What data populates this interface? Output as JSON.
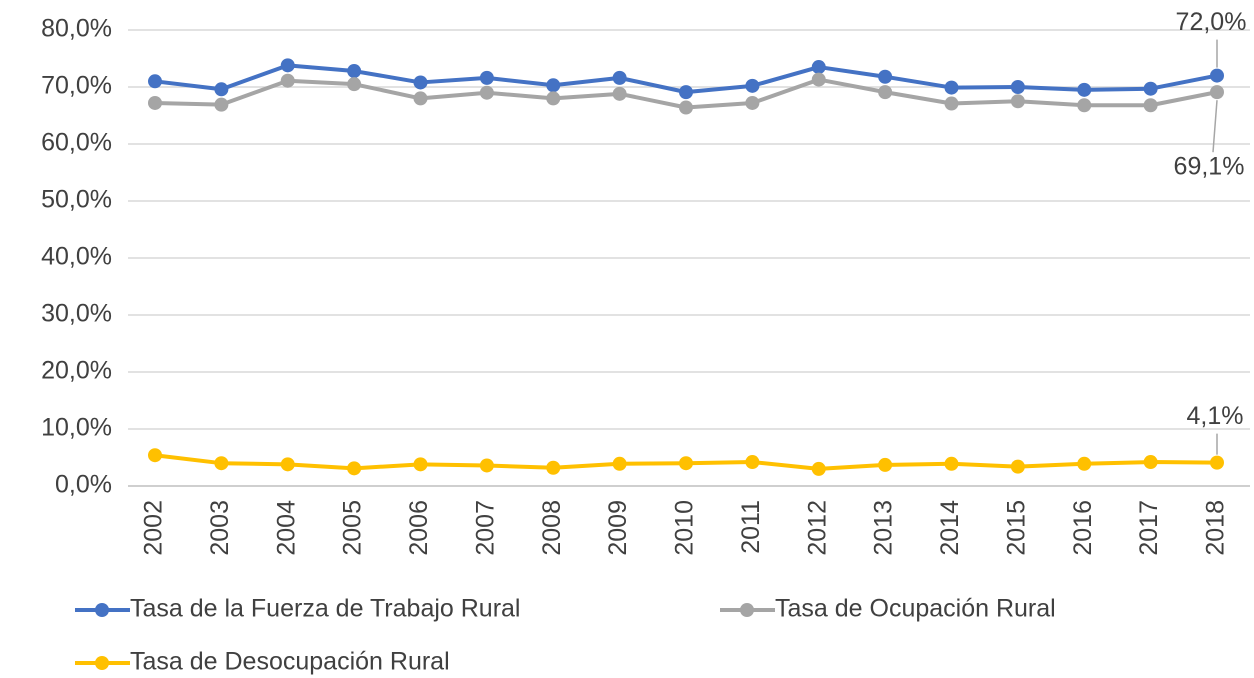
{
  "chart_data": {
    "type": "line",
    "categories": [
      "2002",
      "2003",
      "2004",
      "2005",
      "2006",
      "2007",
      "2008",
      "2009",
      "2010",
      "2011",
      "2012",
      "2013",
      "2014",
      "2015",
      "2016",
      "2017",
      "2018"
    ],
    "series": [
      {
        "name": "Tasa de la Fuerza de Trabajo Rural",
        "color": "#4472c4",
        "values": [
          71.0,
          69.6,
          73.8,
          72.8,
          70.8,
          71.6,
          70.3,
          71.6,
          69.1,
          70.2,
          73.5,
          71.8,
          69.9,
          70.0,
          69.5,
          69.7,
          72.0
        ],
        "value_labels": [
          null,
          null,
          null,
          null,
          null,
          null,
          null,
          null,
          null,
          null,
          null,
          null,
          null,
          null,
          null,
          null,
          "72,0%"
        ]
      },
      {
        "name": "Tasa de Ocupación Rural",
        "color": "#a5a5a5",
        "values": [
          67.2,
          66.9,
          71.1,
          70.5,
          68.0,
          69.0,
          68.0,
          68.8,
          66.4,
          67.2,
          71.3,
          69.1,
          67.1,
          67.5,
          66.8,
          66.8,
          69.1
        ],
        "value_labels": [
          null,
          null,
          null,
          null,
          null,
          null,
          null,
          null,
          null,
          null,
          null,
          null,
          null,
          null,
          null,
          null,
          "69,1%"
        ]
      },
      {
        "name": "Tasa de Desocupación Rural",
        "color": "#ffc000",
        "values": [
          5.4,
          4.0,
          3.8,
          3.1,
          3.8,
          3.6,
          3.2,
          3.9,
          4.0,
          4.2,
          3.0,
          3.7,
          3.9,
          3.4,
          3.9,
          4.2,
          4.1
        ],
        "value_labels": [
          null,
          null,
          null,
          null,
          null,
          null,
          null,
          null,
          null,
          null,
          null,
          null,
          null,
          null,
          null,
          null,
          "4,1%"
        ]
      }
    ],
    "ylim": [
      0,
      80
    ],
    "yticks": [
      {
        "value": 0,
        "label": "0,0%"
      },
      {
        "value": 10,
        "label": "10,0%"
      },
      {
        "value": 20,
        "label": "20,0%"
      },
      {
        "value": 30,
        "label": "30,0%"
      },
      {
        "value": 40,
        "label": "40,0%"
      },
      {
        "value": 50,
        "label": "50,0%"
      },
      {
        "value": 60,
        "label": "60,0%"
      },
      {
        "value": 70,
        "label": "70,0%"
      },
      {
        "value": 80,
        "label": "80,0%"
      }
    ],
    "grid": true
  }
}
